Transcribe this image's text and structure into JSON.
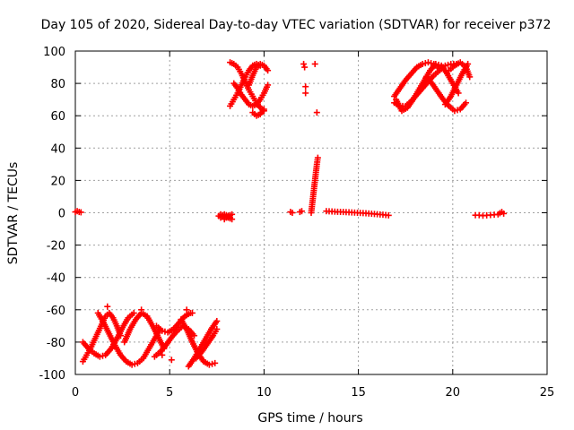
{
  "chart_data": {
    "type": "scatter",
    "title": "Day 105 of 2020, Sidereal Day-to-day VTEC variation (SDTVAR) for receiver p372",
    "xlabel": "GPS time / hours",
    "ylabel": "SDTVAR / TECUs",
    "xlim": [
      0,
      25
    ],
    "ylim": [
      -100,
      100
    ],
    "xticks": [
      0,
      5,
      10,
      15,
      20,
      25
    ],
    "yticks": [
      -100,
      -80,
      -60,
      -40,
      -20,
      0,
      20,
      40,
      60,
      80,
      100
    ],
    "grid": true,
    "marker": "plus",
    "color": "#ff0000",
    "series": [
      {
        "name": "neg-cluster-track-1",
        "x": [
          0.4,
          0.6,
          0.8,
          1.0,
          1.2,
          1.4,
          1.6,
          1.8,
          2.0,
          2.2,
          2.4
        ],
        "y": [
          -92,
          -88,
          -84,
          -79,
          -74,
          -69,
          -64,
          -62,
          -65,
          -70,
          -76
        ]
      },
      {
        "name": "neg-cluster-track-2",
        "x": [
          0.4,
          0.7,
          1.0,
          1.3,
          1.6,
          1.9,
          2.2,
          2.5,
          2.8,
          3.1
        ],
        "y": [
          -80,
          -84,
          -87,
          -89,
          -88,
          -84,
          -78,
          -71,
          -65,
          -62
        ]
      },
      {
        "name": "neg-cluster-track-3",
        "x": [
          1.2,
          1.5,
          1.8,
          2.1,
          2.4,
          2.7,
          3.0,
          3.3,
          3.6,
          3.9,
          4.2,
          4.5
        ],
        "y": [
          -62,
          -68,
          -75,
          -82,
          -88,
          -92,
          -94,
          -93,
          -90,
          -84,
          -78,
          -72
        ]
      },
      {
        "name": "neg-cluster-track-4",
        "x": [
          2.6,
          2.9,
          3.2,
          3.5,
          3.8,
          4.1,
          4.4,
          4.7
        ],
        "y": [
          -80,
          -72,
          -66,
          -62,
          -64,
          -70,
          -77,
          -84
        ]
      },
      {
        "name": "neg-cluster-track-5",
        "x": [
          4.2,
          4.5,
          4.8,
          5.1,
          5.4,
          5.7,
          6.0,
          6.3
        ],
        "y": [
          -89,
          -86,
          -82,
          -77,
          -73,
          -70,
          -72,
          -76
        ]
      },
      {
        "name": "neg-cluster-track-6",
        "x": [
          4.3,
          4.6,
          4.9,
          5.2,
          5.5,
          5.8,
          6.1
        ],
        "y": [
          -70,
          -73,
          -74,
          -72,
          -68,
          -64,
          -62
        ]
      },
      {
        "name": "neg-cluster-track-7",
        "x": [
          5.6,
          5.9,
          6.2,
          6.5,
          6.8,
          7.1,
          7.4
        ],
        "y": [
          -66,
          -72,
          -80,
          -87,
          -92,
          -94,
          -93
        ]
      },
      {
        "name": "neg-cluster-track-8",
        "x": [
          6.0,
          6.3,
          6.6,
          6.9,
          7.2,
          7.5
        ],
        "y": [
          -95,
          -90,
          -84,
          -78,
          -72,
          -67
        ]
      },
      {
        "name": "neg-cluster-track-9",
        "x": [
          6.4,
          6.7,
          7.0,
          7.3,
          7.5
        ],
        "y": [
          -90,
          -86,
          -81,
          -76,
          -72
        ]
      },
      {
        "name": "neg-scatter-points",
        "x": [
          3.8,
          5.9,
          6.2,
          4.6,
          5.1,
          3.5,
          1.7
        ],
        "y": [
          -64,
          -60,
          -62,
          -88,
          -91,
          -60,
          -58
        ]
      },
      {
        "name": "zero-points-early",
        "x": [
          0.0,
          0.1,
          0.2,
          0.3
        ],
        "y": [
          0.5,
          1.0,
          0.5,
          0.3
        ]
      },
      {
        "name": "zero-cluster-8h",
        "x": [
          7.6,
          7.7,
          7.8,
          7.9,
          8.0,
          8.1,
          8.2,
          8.3,
          7.7,
          7.9,
          8.1,
          8.3
        ],
        "y": [
          -2,
          -3,
          -2,
          -4,
          -3,
          -2,
          -3,
          -4,
          -1,
          -1,
          -2,
          -1
        ]
      },
      {
        "name": "pos-cluster-track-1",
        "x": [
          8.2,
          8.4,
          8.6,
          8.8,
          9.0,
          9.2,
          9.4,
          9.6,
          9.8
        ],
        "y": [
          66,
          70,
          74,
          79,
          84,
          88,
          91,
          92,
          91
        ]
      },
      {
        "name": "pos-cluster-track-2",
        "x": [
          8.2,
          8.4,
          8.6,
          8.8,
          9.0,
          9.2,
          9.4,
          9.6,
          9.8,
          10.0
        ],
        "y": [
          93,
          92,
          90,
          86,
          81,
          76,
          72,
          68,
          65,
          63
        ]
      },
      {
        "name": "pos-cluster-track-3",
        "x": [
          8.4,
          8.6,
          8.8,
          9.0,
          9.2,
          9.4,
          9.6,
          9.8,
          10.0,
          10.2
        ],
        "y": [
          80,
          77,
          73,
          70,
          67,
          66,
          67,
          70,
          74,
          79
        ]
      },
      {
        "name": "pos-cluster-track-4",
        "x": [
          9.2,
          9.4,
          9.6,
          9.8,
          10.0,
          10.2
        ],
        "y": [
          79,
          85,
          90,
          92,
          91,
          88
        ]
      },
      {
        "name": "pos-cluster-track-5",
        "x": [
          9.4,
          9.6,
          9.8,
          10.0
        ],
        "y": [
          62,
          60,
          61,
          64
        ]
      },
      {
        "name": "zero-points-11h",
        "x": [
          11.4,
          11.5,
          11.9,
          12.0
        ],
        "y": [
          0.5,
          0.0,
          0.5,
          1.0
        ]
      },
      {
        "name": "scatter-12h-high",
        "x": [
          12.1,
          12.15,
          12.2,
          12.2,
          12.7
        ],
        "y": [
          92,
          90,
          78,
          74,
          92
        ]
      },
      {
        "name": "scatter-12h-mid",
        "x": [
          12.8
        ],
        "y": [
          62
        ]
      },
      {
        "name": "spike-12h",
        "x": [
          12.5,
          12.55,
          12.6,
          12.65,
          12.7,
          12.75,
          12.8,
          12.85
        ],
        "y": [
          0,
          5,
          10,
          15,
          20,
          25,
          30,
          34
        ]
      },
      {
        "name": "zero-track-13h-16h",
        "x": [
          13.3,
          13.6,
          13.9,
          14.2,
          14.5,
          14.8,
          15.1,
          15.4,
          15.7,
          16.0,
          16.3,
          16.6
        ],
        "y": [
          1,
          0.8,
          0.6,
          0.5,
          0.3,
          0.1,
          -0.1,
          -0.3,
          -0.6,
          -0.9,
          -1.2,
          -1.6
        ]
      },
      {
        "name": "pos-cluster-right-track-1",
        "x": [
          16.9,
          17.2,
          17.5,
          17.8,
          18.1,
          18.4,
          18.7,
          19.0,
          19.3
        ],
        "y": [
          72,
          77,
          82,
          86,
          90,
          92,
          93,
          92,
          89
        ]
      },
      {
        "name": "pos-cluster-right-track-2",
        "x": [
          16.9,
          17.2,
          17.5,
          17.8,
          18.1,
          18.4,
          18.7,
          19.0,
          19.3,
          19.6,
          19.9,
          20.2
        ],
        "y": [
          68,
          66,
          66,
          69,
          73,
          77,
          81,
          85,
          88,
          91,
          92,
          92
        ]
      },
      {
        "name": "pos-cluster-right-track-3",
        "x": [
          17.0,
          17.3,
          17.6,
          17.9,
          18.2,
          18.5,
          18.8,
          19.1,
          19.4,
          19.7,
          20.0,
          20.3
        ],
        "y": [
          70,
          63,
          65,
          70,
          76,
          82,
          88,
          92,
          91,
          86,
          80,
          74
        ]
      },
      {
        "name": "pos-cluster-right-track-4",
        "x": [
          18.6,
          18.9,
          19.2,
          19.5,
          19.8,
          20.1,
          20.4,
          20.7
        ],
        "y": [
          84,
          80,
          75,
          70,
          66,
          63,
          64,
          68
        ]
      },
      {
        "name": "pos-cluster-right-track-5",
        "x": [
          19.6,
          19.9,
          20.2,
          20.5,
          20.8
        ],
        "y": [
          67,
          72,
          79,
          86,
          92
        ]
      },
      {
        "name": "pos-cluster-right-track-6",
        "x": [
          19.8,
          20.1,
          20.4,
          20.7,
          20.9
        ],
        "y": [
          88,
          91,
          93,
          90,
          84
        ]
      },
      {
        "name": "zero-cluster-21h",
        "x": [
          21.2,
          21.4,
          21.6,
          21.8,
          22.0,
          22.2,
          22.4,
          22.6,
          22.7
        ],
        "y": [
          -1.5,
          -1.5,
          -1.8,
          -1.6,
          -1.4,
          -1.2,
          -1.0,
          0.5,
          -0.5
        ]
      }
    ]
  }
}
